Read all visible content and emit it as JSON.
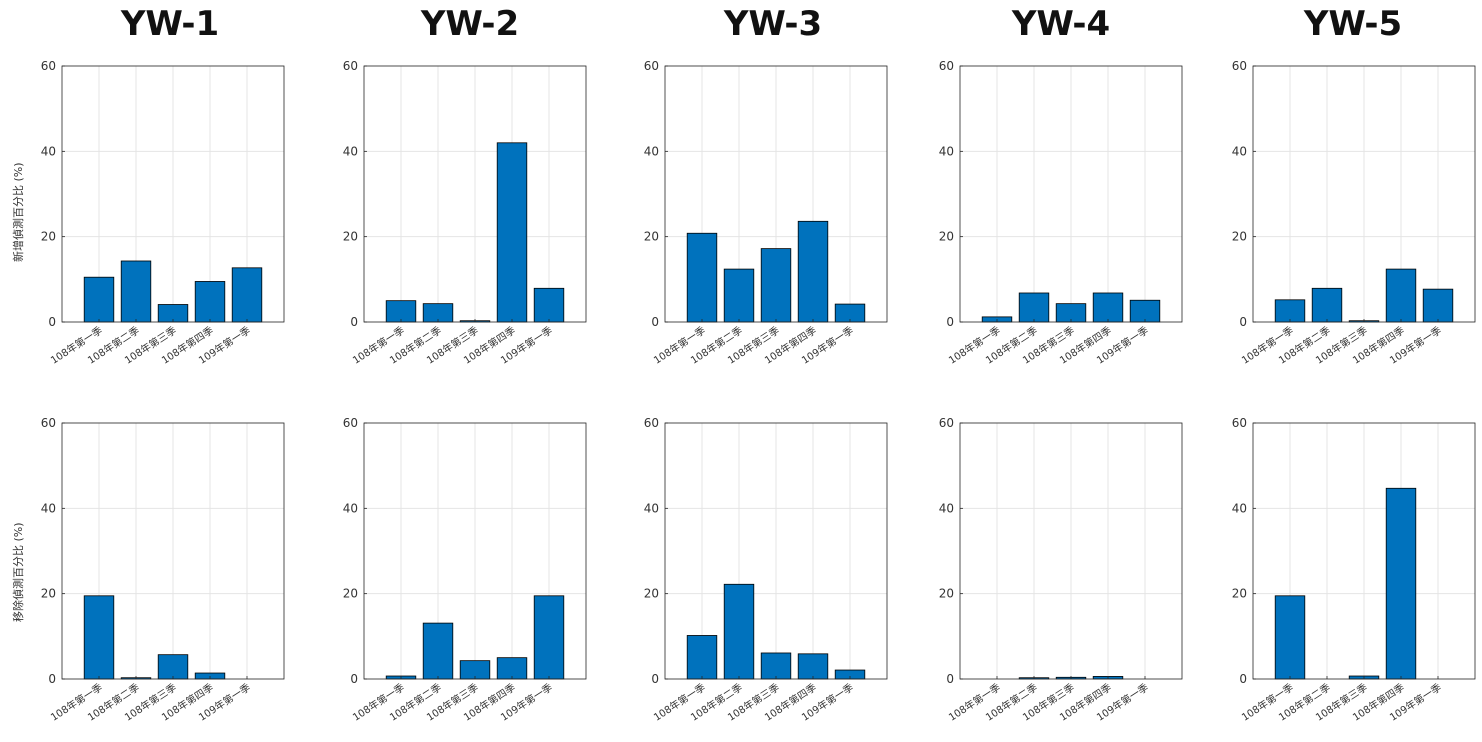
{
  "titles": [
    "YW-1",
    "YW-2",
    "YW-3",
    "YW-4",
    "YW-5"
  ],
  "ylabels": [
    "新增偵測百分比 (%)",
    "移除偵測百分比 (%)"
  ],
  "chart_data": [
    {
      "type": "bar",
      "title": "YW-1",
      "row": 0,
      "categories": [
        "108年第一季",
        "108年第二季",
        "108年第三季",
        "108年第四季",
        "109年第一季"
      ],
      "values": [
        10.5,
        14.3,
        4.1,
        9.5,
        12.7
      ],
      "ylim": [
        0,
        60
      ],
      "yticks": [
        0,
        20,
        40,
        60
      ],
      "grid": true,
      "color": "#0072BD"
    },
    {
      "type": "bar",
      "title": "YW-2",
      "row": 0,
      "categories": [
        "108年第一季",
        "108年第二季",
        "108年第三季",
        "108年第四季",
        "109年第一季"
      ],
      "values": [
        5.0,
        4.3,
        0.3,
        42.0,
        7.9
      ],
      "ylim": [
        0,
        60
      ],
      "yticks": [
        0,
        20,
        40,
        60
      ],
      "grid": true,
      "color": "#0072BD"
    },
    {
      "type": "bar",
      "title": "YW-3",
      "row": 0,
      "categories": [
        "108年第一季",
        "108年第二季",
        "108年第三季",
        "108年第四季",
        "109年第一季"
      ],
      "values": [
        20.8,
        12.4,
        17.2,
        23.6,
        4.2
      ],
      "ylim": [
        0,
        60
      ],
      "yticks": [
        0,
        20,
        40,
        60
      ],
      "grid": true,
      "color": "#0072BD"
    },
    {
      "type": "bar",
      "title": "YW-4",
      "row": 0,
      "categories": [
        "108年第一季",
        "108年第二季",
        "108年第三季",
        "108年第四季",
        "109年第一季"
      ],
      "values": [
        1.2,
        6.8,
        4.3,
        6.8,
        5.1
      ],
      "ylim": [
        0,
        60
      ],
      "yticks": [
        0,
        20,
        40,
        60
      ],
      "grid": true,
      "color": "#0072BD"
    },
    {
      "type": "bar",
      "title": "YW-5",
      "row": 0,
      "categories": [
        "108年第一季",
        "108年第二季",
        "108年第三季",
        "108年第四季",
        "109年第一季"
      ],
      "values": [
        5.2,
        7.9,
        0.3,
        12.4,
        7.7
      ],
      "ylim": [
        0,
        60
      ],
      "yticks": [
        0,
        20,
        40,
        60
      ],
      "grid": true,
      "color": "#0072BD"
    },
    {
      "type": "bar",
      "title": "YW-1",
      "row": 1,
      "categories": [
        "108年第一季",
        "108年第二季",
        "108年第三季",
        "108年第四季",
        "109年第一季"
      ],
      "values": [
        19.5,
        0.3,
        5.7,
        1.4,
        0
      ],
      "ylim": [
        0,
        60
      ],
      "yticks": [
        0,
        20,
        40,
        60
      ],
      "grid": true,
      "color": "#0072BD"
    },
    {
      "type": "bar",
      "title": "YW-2",
      "row": 1,
      "categories": [
        "108年第一季",
        "108年第二季",
        "108年第三季",
        "108年第四季",
        "109年第一季"
      ],
      "values": [
        0.7,
        13.1,
        4.3,
        5.0,
        19.5
      ],
      "ylim": [
        0,
        60
      ],
      "yticks": [
        0,
        20,
        40,
        60
      ],
      "grid": true,
      "color": "#0072BD"
    },
    {
      "type": "bar",
      "title": "YW-3",
      "row": 1,
      "categories": [
        "108年第一季",
        "108年第二季",
        "108年第三季",
        "108年第四季",
        "109年第一季"
      ],
      "values": [
        10.2,
        22.2,
        6.1,
        5.9,
        2.1
      ],
      "ylim": [
        0,
        60
      ],
      "yticks": [
        0,
        20,
        40,
        60
      ],
      "grid": true,
      "color": "#0072BD"
    },
    {
      "type": "bar",
      "title": "YW-4",
      "row": 1,
      "categories": [
        "108年第一季",
        "108年第二季",
        "108年第三季",
        "108年第四季",
        "109年第一季"
      ],
      "values": [
        0,
        0.3,
        0.4,
        0.6,
        0
      ],
      "ylim": [
        0,
        60
      ],
      "yticks": [
        0,
        20,
        40,
        60
      ],
      "grid": true,
      "color": "#0072BD"
    },
    {
      "type": "bar",
      "title": "YW-5",
      "row": 1,
      "categories": [
        "108年第一季",
        "108年第二季",
        "108年第三季",
        "108年第四季",
        "109年第一季"
      ],
      "values": [
        19.5,
        0,
        0.7,
        44.7,
        0
      ],
      "ylim": [
        0,
        60
      ],
      "yticks": [
        0,
        20,
        40,
        60
      ],
      "grid": true,
      "color": "#0072BD"
    }
  ]
}
